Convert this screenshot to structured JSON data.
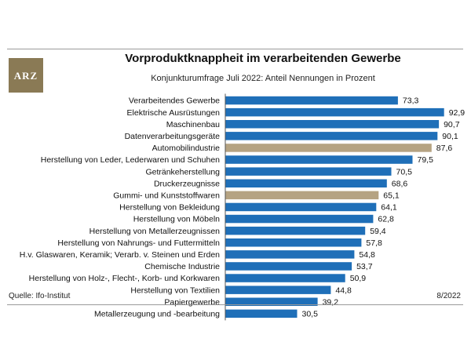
{
  "header": {
    "title": "Vorproduktknappheit im verarbeitenden Gewerbe",
    "subtitle": "Konjunkturumfrage Juli 2022: Anteil Nennungen in Prozent"
  },
  "logo": {
    "text": "ARZ"
  },
  "footer": {
    "source": "Quelle: Ifo-Institut",
    "date": "8/2022"
  },
  "colors": {
    "bar": "#1f6fb8",
    "highlight": "#b5a382",
    "axis": "#555555"
  },
  "chart_data": {
    "type": "bar",
    "orientation": "horizontal",
    "categories": [
      "Verarbeitendes Gewerbe",
      "Elektrische Ausrüstungen",
      "Maschinenbau",
      "Datenverarbeitungsgeräte",
      "Automobilindustrie",
      "Herstellung von Leder, Lederwaren und Schuhen",
      "Getränkeherstellung",
      "Druckerzeugnisse",
      "Gummi- und Kunststoffwaren",
      "Herstellung von Bekleidung",
      "Herstellung von Möbeln",
      "Herstellung von Metallerzeugnissen",
      "Herstellung von Nahrungs- und Futtermitteln",
      "H.v. Glaswaren, Keramik; Verarb. v. Steinen und Erden",
      "Chemische Industrie",
      "Herstellung von Holz-, Flecht-, Korb- und Korkwaren",
      "Herstellung von Textilien",
      "Papiergewerbe",
      "Metallerzeugung und -bearbeitung"
    ],
    "values": [
      73.3,
      92.9,
      90.7,
      90.1,
      87.6,
      79.5,
      70.5,
      68.6,
      65.1,
      64.1,
      62.8,
      59.4,
      57.8,
      54.8,
      53.7,
      50.9,
      44.8,
      39.2,
      30.5
    ],
    "value_labels": [
      "73,3",
      "92,9",
      "90,7",
      "90,1",
      "87,6",
      "79,5",
      "70,5",
      "68,6",
      "65,1",
      "64,1",
      "62,8",
      "59,4",
      "57,8",
      "54,8",
      "53,7",
      "50,9",
      "44,8",
      "39,2",
      "30,5"
    ],
    "highlighted": [
      "Automobilindustrie",
      "Gummi- und Kunststoffwaren"
    ],
    "xlim": [
      0,
      100
    ],
    "grid": false,
    "legend": "none"
  }
}
